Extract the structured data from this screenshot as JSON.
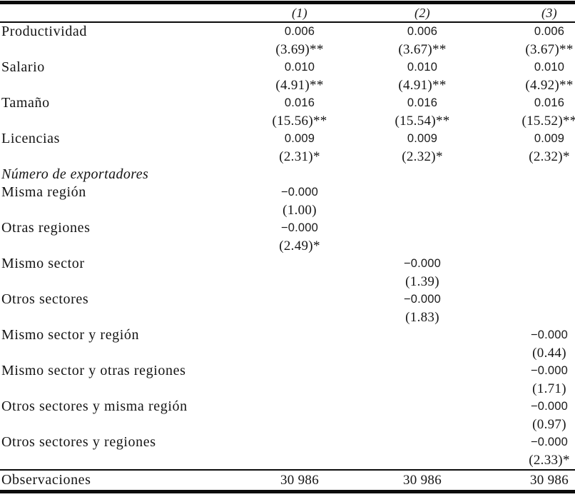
{
  "table": {
    "header": {
      "col1": "(1)",
      "col2": "(2)",
      "col3": "(3)"
    },
    "rows": [
      {
        "label": "Productividad",
        "c1": "0.006",
        "c2": "0.006",
        "c3": "0.006"
      },
      {
        "label": "",
        "c1": "(3.69)**",
        "c2": "(3.67)**",
        "c3": "(3.67)**"
      },
      {
        "label": "Salario",
        "c1": "0.010",
        "c2": "0.010",
        "c3": "0.010"
      },
      {
        "label": "",
        "c1": "(4.91)**",
        "c2": "(4.91)**",
        "c3": "(4.92)**"
      },
      {
        "label": "Tamaño",
        "c1": "0.016",
        "c2": "0.016",
        "c3": "0.016"
      },
      {
        "label": "",
        "c1": "(15.56)**",
        "c2": "(15.54)**",
        "c3": "(15.52)**"
      },
      {
        "label": "Licencias",
        "c1": "0.009",
        "c2": "0.009",
        "c3": "0.009"
      },
      {
        "label": "",
        "c1": "(2.31)*",
        "c2": "(2.32)*",
        "c3": "(2.32)*"
      },
      {
        "label": "Número de exportadores",
        "c1": "",
        "c2": "",
        "c3": ""
      },
      {
        "label": "Misma región",
        "c1": "−0.000",
        "c2": "",
        "c3": ""
      },
      {
        "label": "",
        "c1": "(1.00)",
        "c2": "",
        "c3": ""
      },
      {
        "label": "Otras regiones",
        "c1": "−0.000",
        "c2": "",
        "c3": ""
      },
      {
        "label": "",
        "c1": "(2.49)*",
        "c2": "",
        "c3": ""
      },
      {
        "label": "Mismo sector",
        "c1": "",
        "c2": "−0.000",
        "c3": ""
      },
      {
        "label": "",
        "c1": "",
        "c2": "(1.39)",
        "c3": ""
      },
      {
        "label": "Otros sectores",
        "c1": "",
        "c2": "−0.000",
        "c3": ""
      },
      {
        "label": "",
        "c1": "",
        "c2": "(1.83)",
        "c3": ""
      },
      {
        "label": "Mismo sector y región",
        "c1": "",
        "c2": "",
        "c3": "−0.000"
      },
      {
        "label": "",
        "c1": "",
        "c2": "",
        "c3": "(0.44)"
      },
      {
        "label": "Mismo sector y otras regiones",
        "c1": "",
        "c2": "",
        "c3": "−0.000"
      },
      {
        "label": "",
        "c1": "",
        "c2": "",
        "c3": "(1.71)"
      },
      {
        "label": "Otros sectores y misma región",
        "c1": "",
        "c2": "",
        "c3": "−0.000"
      },
      {
        "label": "",
        "c1": "",
        "c2": "",
        "c3": "(0.97)"
      },
      {
        "label": "Otros sectores y regiones",
        "c1": "",
        "c2": "",
        "c3": "−0.000"
      },
      {
        "label": "",
        "c1": "",
        "c2": "",
        "c3": "(2.33)*"
      }
    ],
    "footer": {
      "label": "Observaciones",
      "c1": "30 986",
      "c2": "30 986",
      "c3": "30 986"
    }
  }
}
